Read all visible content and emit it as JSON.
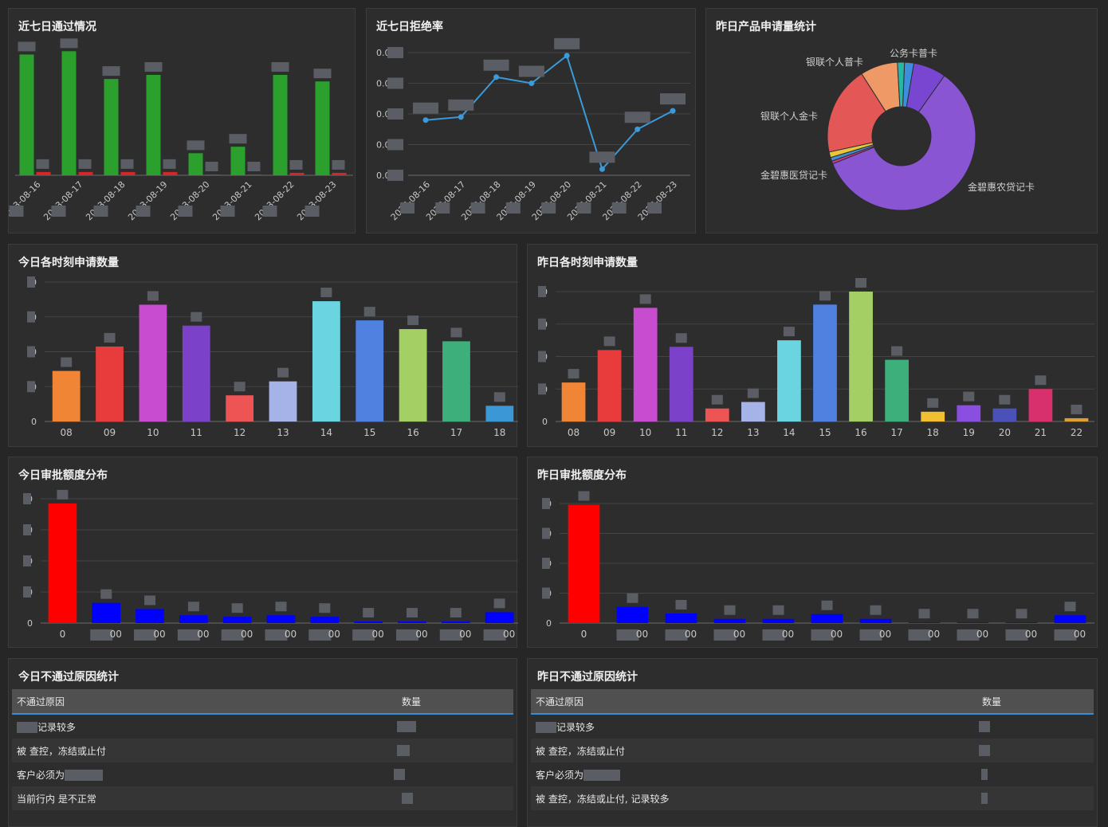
{
  "panels": {
    "pass7": {
      "title": "近七日通过情况"
    },
    "reject7": {
      "title": "近七日拒绝率"
    },
    "product": {
      "title": "昨日产品申请量统计"
    },
    "today_hour": {
      "title": "今日各时刻申请数量"
    },
    "yday_hour": {
      "title": "昨日各时刻申请数量"
    },
    "today_amount": {
      "title": "今日审批额度分布"
    },
    "yday_amount": {
      "title": "昨日审批额度分布"
    },
    "today_reason": {
      "title": "今日不通过原因统计"
    },
    "yday_reason": {
      "title": "昨日不通过原因统计"
    }
  },
  "tables": {
    "today": {
      "headers": [
        "不通过原因",
        "数量"
      ],
      "rows": [
        [
          "记录较多",
          ""
        ],
        [
          "被 查控，冻结或止付",
          ""
        ],
        [
          "客户必须为",
          ""
        ],
        [
          "当前行内 是不正常",
          ""
        ]
      ]
    },
    "yesterday": {
      "headers": [
        "不通过原因",
        "数量"
      ],
      "rows": [
        [
          "记录较多",
          ""
        ],
        [
          "被 查控，冻结或止付",
          ""
        ],
        [
          "客户必须为",
          ""
        ],
        [
          "被 查控，冻结或止付, 记录较多",
          ""
        ]
      ]
    }
  },
  "chart_data": [
    {
      "id": "pass7",
      "type": "bar",
      "title": "近七日通过情况",
      "categories": [
        "2023-08-16",
        "2023-08-17",
        "2023-08-18",
        "2023-08-19",
        "2023-08-20",
        "2023-08-21",
        "2023-08-22",
        "2023-08-23"
      ],
      "series": [
        {
          "color": "#2ca02c",
          "values": [
            148,
            152,
            118,
            123,
            27,
            35,
            123,
            115
          ]
        },
        {
          "color": "#d62728",
          "values": [
            4,
            4,
            4,
            4,
            1,
            1,
            3,
            3
          ]
        }
      ],
      "ylim": [
        0,
        165
      ]
    },
    {
      "id": "reject7",
      "type": "line",
      "title": "近七日拒绝率",
      "categories": [
        "2023-08-16",
        "2023-08-17",
        "2023-08-18",
        "2023-08-19",
        "2023-08-20",
        "2023-08-21",
        "2023-08-22",
        "2023-08-23"
      ],
      "values": [
        0.018,
        0.019,
        0.032,
        0.03,
        0.039,
        0.002,
        0.015,
        0.021
      ],
      "yticks": [
        "0.0",
        "0.0",
        "0.0",
        "0.0",
        "0.0"
      ],
      "ylim": [
        0,
        0.04
      ],
      "color": "#3b9ad9"
    },
    {
      "id": "product",
      "type": "pie",
      "title": "昨日产品申请量统计",
      "slices": [
        {
          "label": "公务卡普卡",
          "value": 2,
          "color": "#3e8fdb"
        },
        {
          "label": "",
          "value": 7,
          "color": "#7846d1"
        },
        {
          "label": "金碧惠农贷记卡",
          "value": 58,
          "color": "#8a55d3"
        },
        {
          "label": "",
          "value": 0.6,
          "color": "#c23c8c"
        },
        {
          "label": "",
          "value": 0.8,
          "color": "#3f8fd8"
        },
        {
          "label": "金碧惠医贷记卡",
          "value": 1.2,
          "color": "#e8c53a"
        },
        {
          "label": "银联个人金卡",
          "value": 19,
          "color": "#e35757"
        },
        {
          "label": "银联个人普卡",
          "value": 8,
          "color": "#ef9a66"
        },
        {
          "label": "",
          "value": 1.5,
          "color": "#26b7a5"
        }
      ]
    },
    {
      "id": "today_hour",
      "type": "bar",
      "title": "今日各时刻申请数量",
      "categories": [
        "08",
        "09",
        "10",
        "11",
        "12",
        "13",
        "14",
        "15",
        "16",
        "17",
        "18"
      ],
      "values": [
        29,
        43,
        67,
        55,
        15,
        23,
        69,
        58,
        53,
        46,
        9
      ],
      "colors": [
        "#f08535",
        "#e83c3c",
        "#c84ccf",
        "#7b42c9",
        "#ef5454",
        "#a5b3e8",
        "#6ad5e0",
        "#5080e0",
        "#a3cf64",
        "#3daf7a",
        "#3c97d7"
      ],
      "yticks": [
        "0",
        "0",
        "0",
        "0",
        "0"
      ],
      "ylim": [
        0,
        80
      ]
    },
    {
      "id": "yday_hour",
      "type": "bar",
      "title": "昨日各时刻申请数量",
      "categories": [
        "08",
        "09",
        "10",
        "11",
        "12",
        "13",
        "14",
        "15",
        "16",
        "17",
        "18",
        "19",
        "20",
        "21",
        "22"
      ],
      "values": [
        12,
        22,
        35,
        23,
        4,
        6,
        25,
        36,
        40,
        19,
        3,
        5,
        4,
        10,
        1
      ],
      "colors": [
        "#f08535",
        "#e83c3c",
        "#c84ccf",
        "#7b42c9",
        "#ef5454",
        "#a5b3e8",
        "#6ad5e0",
        "#5080e0",
        "#a3cf64",
        "#3daf7a",
        "#f0c030",
        "#8a4ee0",
        "#4a52b8",
        "#d8306c",
        "#e0a030"
      ],
      "yticks": [
        "0",
        "0",
        "0",
        "0",
        "0"
      ],
      "ylim": [
        0,
        40
      ]
    },
    {
      "id": "today_amount",
      "type": "bar",
      "title": "今日审批额度分布",
      "categories": [
        "0",
        "00",
        "00",
        "00",
        "00",
        "00",
        "00",
        "00",
        "00",
        "00",
        "00"
      ],
      "values": [
        77,
        13,
        9,
        5,
        4,
        5,
        4,
        1,
        1,
        1,
        7
      ],
      "colors": [
        "#ff0000",
        "#0000ff",
        "#0000ff",
        "#0000ff",
        "#0000ff",
        "#0000ff",
        "#0000ff",
        "#0000ff",
        "#0000ff",
        "#0000ff",
        "#0000ff"
      ],
      "yticks": [
        "0",
        "0",
        "0",
        "0",
        "0"
      ],
      "ylim": [
        0,
        80
      ]
    },
    {
      "id": "yday_amount",
      "type": "bar",
      "title": "昨日审批额度分布",
      "categories": [
        "0",
        "00",
        "00",
        "00",
        "00",
        "00",
        "00",
        "00",
        "00",
        "00",
        "00"
      ],
      "values": [
        198,
        27,
        16,
        7,
        7,
        15,
        7,
        1,
        1,
        1,
        13
      ],
      "colors": [
        "#ff0000",
        "#0000ff",
        "#0000ff",
        "#0000ff",
        "#0000ff",
        "#0000ff",
        "#0000ff",
        "#0000ff",
        "#0000ff",
        "#0000ff",
        "#0000ff"
      ],
      "yticks": [
        "0",
        "0",
        "0",
        "0",
        "0"
      ],
      "ylim": [
        0,
        200
      ]
    }
  ]
}
